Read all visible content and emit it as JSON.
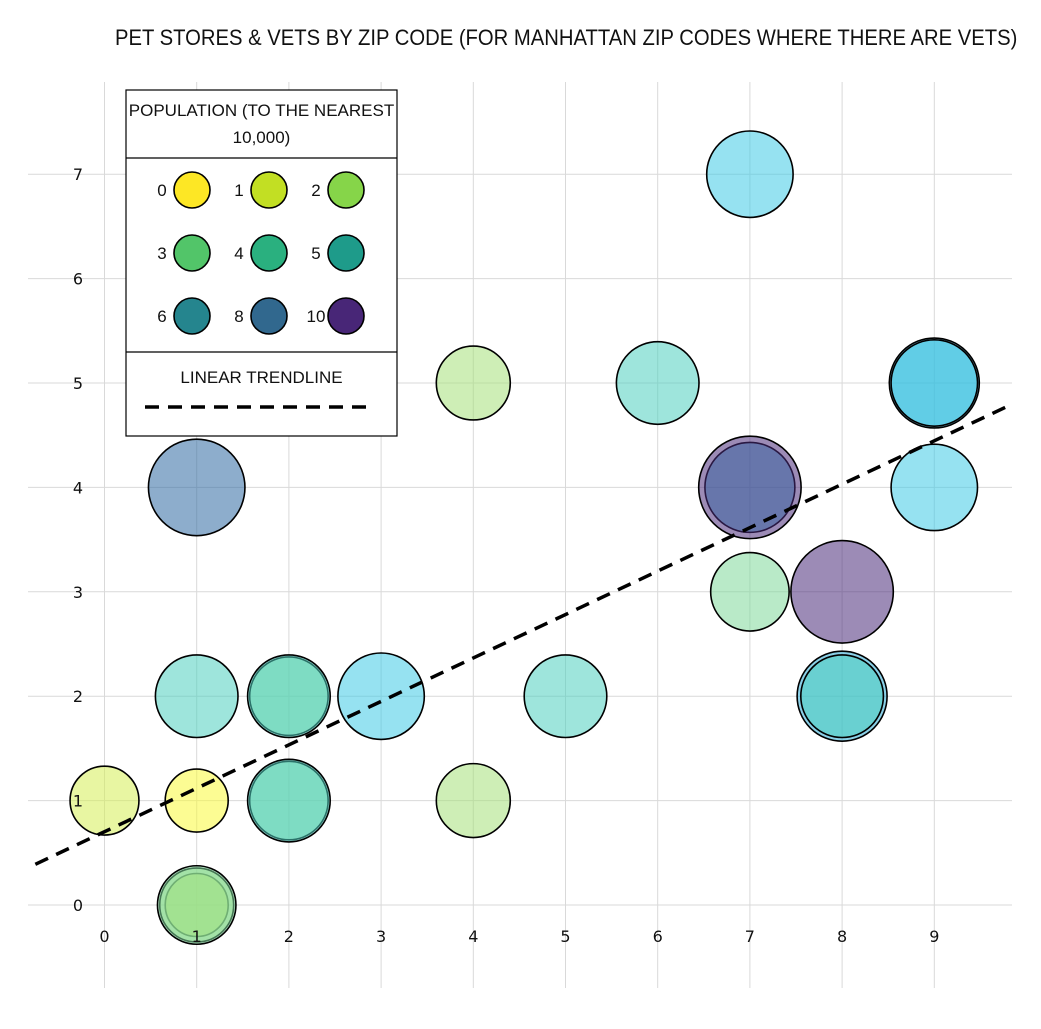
{
  "chart_data": {
    "type": "scatter",
    "title": "PET STORES & VETS BY ZIP CODE (FOR MANHATTAN ZIP CODES WHERE THERE ARE VETS)",
    "xlabel": "",
    "ylabel": "",
    "xlim": [
      -0.8,
      9.85
    ],
    "ylim": [
      -0.8,
      7.8
    ],
    "xticks": [
      0,
      1,
      2,
      3,
      4,
      5,
      6,
      7,
      8,
      9
    ],
    "yticks": [
      0,
      1,
      2,
      3,
      4,
      5,
      6,
      7
    ],
    "grid": true,
    "legend_position": "top-left",
    "size_encoding": "population (to the nearest 10,000)",
    "color_scale": {
      "0": "#fde725",
      "1": "#c2df23",
      "2": "#86d549",
      "3": "#52c569",
      "4": "#2ab07f",
      "5": "#1e9b8a",
      "6": "#25858e",
      "8": "#31688e",
      "10": "#482677"
    },
    "bubble_colors": {
      "0": "#f9f93a",
      "1": "#d6ee56",
      "2": "#a6e07a",
      "3": "#7fd99a",
      "4": "#4ecfbf",
      "5": "#3fcbe6",
      "6": "#2aa9d4",
      "8": "#2f6aa3",
      "10": "#4b2c7a"
    },
    "points": [
      {
        "x": 0,
        "y": 1,
        "population": 1
      },
      {
        "x": 1,
        "y": 1,
        "population": 0
      },
      {
        "x": 1,
        "y": 0,
        "population": 0
      },
      {
        "x": 1,
        "y": 0,
        "population": 2
      },
      {
        "x": 1,
        "y": 0,
        "population": 3
      },
      {
        "x": 1,
        "y": 2,
        "population": 4
      },
      {
        "x": 1,
        "y": 4,
        "population": 8
      },
      {
        "x": 2,
        "y": 2,
        "population": 3
      },
      {
        "x": 2,
        "y": 2,
        "population": 4
      },
      {
        "x": 2,
        "y": 1,
        "population": 3
      },
      {
        "x": 2,
        "y": 1,
        "population": 4
      },
      {
        "x": 3,
        "y": 2,
        "population": 5
      },
      {
        "x": 4,
        "y": 5,
        "population": 2
      },
      {
        "x": 4,
        "y": 1,
        "population": 2
      },
      {
        "x": 5,
        "y": 2,
        "population": 4
      },
      {
        "x": 6,
        "y": 5,
        "population": 4
      },
      {
        "x": 7,
        "y": 7,
        "population": 5
      },
      {
        "x": 7,
        "y": 4,
        "population": 6
      },
      {
        "x": 7,
        "y": 4,
        "population": 10
      },
      {
        "x": 7,
        "y": 3,
        "population": 3
      },
      {
        "x": 8,
        "y": 3,
        "population": 10
      },
      {
        "x": 8,
        "y": 2,
        "population": 6
      },
      {
        "x": 8,
        "y": 2,
        "population": 4
      },
      {
        "x": 9,
        "y": 5,
        "population": 6
      },
      {
        "x": 9,
        "y": 5,
        "population": 5
      },
      {
        "x": 9,
        "y": 4,
        "population": 5
      }
    ],
    "trendline": {
      "x": [
        -0.75,
        9.85
      ],
      "y": [
        0.39,
        4.8
      ]
    },
    "legend": {
      "title": "POPULATION (TO THE NEAREST 10,000)",
      "entries": [
        {
          "label": "0",
          "color": "#fde725"
        },
        {
          "label": "1",
          "color": "#c2df23"
        },
        {
          "label": "2",
          "color": "#86d549"
        },
        {
          "label": "3",
          "color": "#52c569"
        },
        {
          "label": "4",
          "color": "#2ab07f"
        },
        {
          "label": "5",
          "color": "#1e9b8a"
        },
        {
          "label": "6",
          "color": "#25858e"
        },
        {
          "label": "8",
          "color": "#31688e"
        },
        {
          "label": "10",
          "color": "#482677"
        }
      ],
      "trendline_label": "LINEAR TRENDLINE"
    }
  }
}
